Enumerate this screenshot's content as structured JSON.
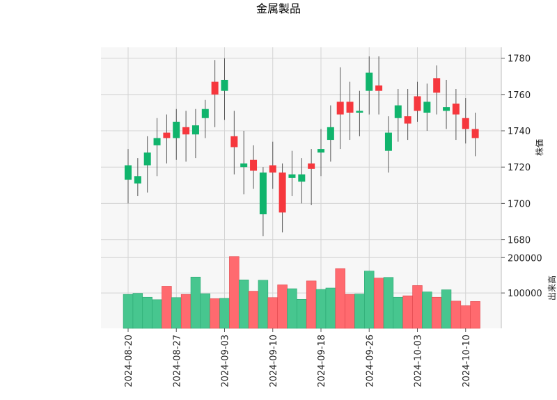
{
  "chart_data": {
    "type": "candlestick",
    "title": "金属製品",
    "price_ylabel": "株価",
    "volume_ylabel": "出来高",
    "price_ylim": [
      1676,
      1786
    ],
    "price_yticks": [
      "1680",
      "1700",
      "1720",
      "1740",
      "1760",
      "1780"
    ],
    "volume_ylim": [
      0,
      230000
    ],
    "volume_yticks": [
      "100000",
      "200000"
    ],
    "xtick_labels": [
      "2024-08-20",
      "2024-08-27",
      "2024-09-03",
      "2024-09-10",
      "2024-09-18",
      "2024-09-26",
      "2024-10-03",
      "2024-10-10"
    ],
    "xtick_index": [
      0,
      5,
      10,
      15,
      20,
      25,
      30,
      35
    ],
    "grid": true,
    "up_color": "#10b46c",
    "down_color": "#f6373d",
    "up_volume_color": "#47c68f",
    "down_volume_color": "#ff6a6f",
    "candles": [
      {
        "open": 1713,
        "high": 1730,
        "low": 1700,
        "close": 1721,
        "volume": 96000
      },
      {
        "open": 1711,
        "high": 1725,
        "low": 1704,
        "close": 1715,
        "volume": 99000
      },
      {
        "open": 1721,
        "high": 1737,
        "low": 1706,
        "close": 1728,
        "volume": 88000
      },
      {
        "open": 1732,
        "high": 1747,
        "low": 1715,
        "close": 1736,
        "volume": 81000
      },
      {
        "open": 1739,
        "high": 1749,
        "low": 1722,
        "close": 1736,
        "volume": 119000
      },
      {
        "open": 1736,
        "high": 1752,
        "low": 1724,
        "close": 1745,
        "volume": 87000
      },
      {
        "open": 1742,
        "high": 1751,
        "low": 1723,
        "close": 1738,
        "volume": 96000
      },
      {
        "open": 1738,
        "high": 1752,
        "low": 1725,
        "close": 1743,
        "volume": 145000
      },
      {
        "open": 1747,
        "high": 1757,
        "low": 1736,
        "close": 1752,
        "volume": 98000
      },
      {
        "open": 1767,
        "high": 1779,
        "low": 1742,
        "close": 1760,
        "volume": 84000
      },
      {
        "open": 1762,
        "high": 1780,
        "low": 1746,
        "close": 1768,
        "volume": 85000
      },
      {
        "open": 1737,
        "high": 1751,
        "low": 1716,
        "close": 1731,
        "volume": 203000
      },
      {
        "open": 1720,
        "high": 1740,
        "low": 1705,
        "close": 1722,
        "volume": 137000
      },
      {
        "open": 1724,
        "high": 1732,
        "low": 1708,
        "close": 1718,
        "volume": 105000
      },
      {
        "open": 1694,
        "high": 1720,
        "low": 1682,
        "close": 1717,
        "volume": 136000
      },
      {
        "open": 1721,
        "high": 1734,
        "low": 1708,
        "close": 1717,
        "volume": 87000
      },
      {
        "open": 1717,
        "high": 1722,
        "low": 1684,
        "close": 1695,
        "volume": 123000
      },
      {
        "open": 1714,
        "high": 1729,
        "low": 1704,
        "close": 1716,
        "volume": 112000
      },
      {
        "open": 1712,
        "high": 1725,
        "low": 1700,
        "close": 1716,
        "volume": 82000
      },
      {
        "open": 1722,
        "high": 1730,
        "low": 1699,
        "close": 1719,
        "volume": 134000
      },
      {
        "open": 1728,
        "high": 1741,
        "low": 1715,
        "close": 1730,
        "volume": 110000
      },
      {
        "open": 1735,
        "high": 1754,
        "low": 1723,
        "close": 1742,
        "volume": 114000
      },
      {
        "open": 1756,
        "high": 1775,
        "low": 1730,
        "close": 1749,
        "volume": 169000
      },
      {
        "open": 1756,
        "high": 1767,
        "low": 1735,
        "close": 1750,
        "volume": 96000
      },
      {
        "open": 1750,
        "high": 1762,
        "low": 1737,
        "close": 1751,
        "volume": 97000
      },
      {
        "open": 1762,
        "high": 1781,
        "low": 1749,
        "close": 1772,
        "volume": 162000
      },
      {
        "open": 1765,
        "high": 1781,
        "low": 1749,
        "close": 1762,
        "volume": 142000
      },
      {
        "open": 1729,
        "high": 1748,
        "low": 1717,
        "close": 1739,
        "volume": 144000
      },
      {
        "open": 1747,
        "high": 1763,
        "low": 1734,
        "close": 1754,
        "volume": 88000
      },
      {
        "open": 1748,
        "high": 1763,
        "low": 1735,
        "close": 1744,
        "volume": 92000
      },
      {
        "open": 1759,
        "high": 1767,
        "low": 1745,
        "close": 1751,
        "volume": 121000
      },
      {
        "open": 1750,
        "high": 1766,
        "low": 1740,
        "close": 1756,
        "volume": 103000
      },
      {
        "open": 1769,
        "high": 1776,
        "low": 1749,
        "close": 1761,
        "volume": 88000
      },
      {
        "open": 1751,
        "high": 1768,
        "low": 1741,
        "close": 1753,
        "volume": 109000
      },
      {
        "open": 1755,
        "high": 1763,
        "low": 1735,
        "close": 1749,
        "volume": 77000
      },
      {
        "open": 1747,
        "high": 1758,
        "low": 1733,
        "close": 1741,
        "volume": 64000
      },
      {
        "open": 1741,
        "high": 1750,
        "low": 1726,
        "close": 1736,
        "volume": 76000
      }
    ]
  }
}
